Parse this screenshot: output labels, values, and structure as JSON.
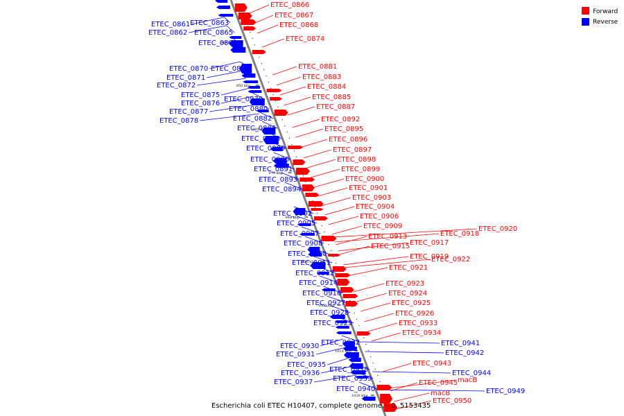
{
  "colors": {
    "forward": "#ff0000",
    "reverse": "#0000ff",
    "backbone": "#808080"
  },
  "legend": {
    "forward": "Forward",
    "reverse": "Reverse"
  },
  "caption": "Escherichia coli ETEC H10407, complete genome. - 0..5153435",
  "ticks": [
    "940 kbp",
    "950 kbp",
    "960 kbp",
    "970 kbp",
    "980 kbp",
    "990 kbp",
    "1000 kbp",
    "1010 kbp",
    "1020 kbp"
  ],
  "forward_labels": [
    "ETEC_0866",
    "ETEC_0867",
    "ETEC_0868",
    "ETEC_0874",
    "ETEC_0881",
    "ETEC_0883",
    "ETEC_0884",
    "ETEC_0885",
    "ETEC_0887",
    "ETEC_0892",
    "ETEC_0895",
    "ETEC_0896",
    "ETEC_0897",
    "ETEC_0898",
    "ETEC_0899",
    "ETEC_0900",
    "ETEC_0901",
    "ETEC_0903",
    "ETEC_0904",
    "ETEC_0906",
    "ETEC_0909",
    "ETEC_0913",
    "ETEC_0915",
    "ETEC_0917",
    "ETEC_0918",
    "ETEC_0920",
    "ETEC_0919",
    "ETEC_0922",
    "ETEC_0921",
    "ETEC_0923",
    "ETEC_0924",
    "ETEC_0925",
    "ETEC_0926",
    "ETEC_0933",
    "ETEC_0934",
    "ETEC_0943",
    "ETEC_0945",
    "macB",
    "macB",
    "ETEC_0950"
  ],
  "reverse_labels": [
    "ETEC_0861",
    "ETEC_0863",
    "ETEC_0862",
    "ETEC_0865",
    "ETEC_0869",
    "ETEC_0870",
    "ETEC_0873",
    "ETEC_0871",
    "ETEC_0872",
    "ETEC_0875",
    "ETEC_0879",
    "ETEC_0876",
    "ETEC_0877",
    "ETEC_0880",
    "ETEC_0878",
    "ETEC_0882",
    "ETEC_0886",
    "ETEC_0888",
    "ETEC_0889",
    "ETEC_0890",
    "ETEC_0891",
    "ETEC_0893",
    "ETEC_0894",
    "ETEC_0902",
    "ETEC_0905",
    "ETEC_0907",
    "ETEC_0908",
    "ETEC_0910",
    "ETEC_0911",
    "ETEC_0912",
    "ETEC_0914",
    "ETEC_0916",
    "ETEC_0927",
    "ETEC_0928",
    "ETEC_0929",
    "ETEC_0932",
    "ETEC_0930",
    "ETEC_0931",
    "ETEC_0935",
    "ETEC_0938",
    "ETEC_0936",
    "ETEC_0939",
    "ETEC_0937",
    "ETEC_0940",
    "ETEC_0941",
    "ETEC_0942",
    "ETEC_0944",
    "ETEC_0949"
  ]
}
